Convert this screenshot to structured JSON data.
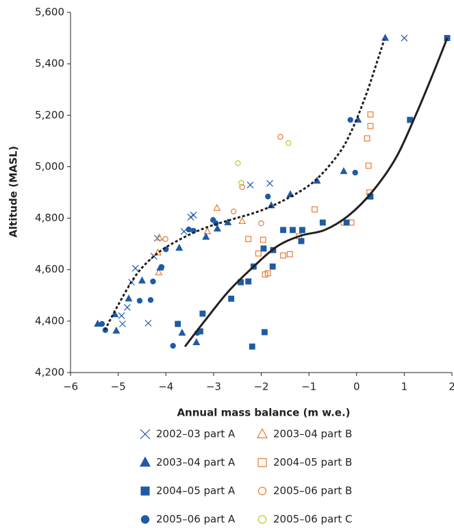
{
  "chart_data": {
    "type": "scatter",
    "x_label": "Annual mass balance (m w.e.)",
    "y_label": "Altitude (MASL)",
    "xlim": [
      -6,
      2
    ],
    "xticks": [
      {
        "value": -6,
        "label": "−6"
      },
      {
        "value": -5,
        "label": "−5"
      },
      {
        "value": -4,
        "label": "−4"
      },
      {
        "value": -3,
        "label": "−3"
      },
      {
        "value": -2,
        "label": "−2"
      },
      {
        "value": -1,
        "label": "−1"
      },
      0,
      1,
      2
    ],
    "ylim": [
      4200,
      5600
    ],
    "yticks": [
      {
        "value": 4200,
        "label": "4,200"
      },
      {
        "value": 4400,
        "label": "4,400"
      },
      {
        "value": 4600,
        "label": "4,600"
      },
      {
        "value": 4800,
        "label": "4,800"
      },
      {
        "value": 5000,
        "label": "5,000"
      },
      {
        "value": 5200,
        "label": "5,200"
      },
      {
        "value": 5400,
        "label": "5,400"
      },
      {
        "value": 5600,
        "label": "5,600"
      }
    ],
    "series": [
      {
        "name": "2002–03 part A",
        "color": "#1f5aa6",
        "marker": "x",
        "filled": false,
        "x": [
          1.0,
          -2.23,
          -1.82,
          -3.42,
          -3.48,
          -3.62,
          -4.18,
          -4.25,
          -4.64,
          -4.72,
          -4.81,
          -4.93,
          -4.91,
          -4.37
        ],
        "values": [
          5500,
          4929,
          4935,
          4812,
          4804,
          4748,
          4722,
          4652,
          4605,
          4551,
          4453,
          4421,
          4389,
          4392
        ]
      },
      {
        "name": "2003–04 part B",
        "color": "#e8792f",
        "marker": "triangle",
        "filled": false,
        "x": [
          -2.93,
          -3.13,
          -2.4,
          -4.14,
          -4.17,
          -4.15
        ],
        "values": [
          4839,
          4748,
          4788,
          4724,
          4666,
          4589
        ]
      },
      {
        "name": "2003–04 part A",
        "color": "#1f5aa6",
        "marker": "triangle",
        "filled": true,
        "x": [
          0.6,
          0.03,
          -0.27,
          -0.83,
          -1.39,
          -1.79,
          -2.7,
          -2.92,
          -3.16,
          -3.72,
          -4.12,
          -4.5,
          -4.78,
          -5.07,
          -5.43,
          -5.04,
          -3.36,
          -3.66
        ],
        "values": [
          5500,
          5182,
          4982,
          4945,
          4892,
          4849,
          4783,
          4759,
          4727,
          4684,
          4607,
          4557,
          4487,
          4426,
          4389,
          4362,
          4317,
          4354
        ]
      },
      {
        "name": "2004–05 part B",
        "color": "#e8792f",
        "marker": "square",
        "filled": false,
        "x": [
          0.29,
          0.29,
          0.22,
          0.25,
          0.27,
          -0.11,
          -0.27,
          -0.88,
          -1.21,
          -1.4,
          -1.54,
          -1.92,
          -1.86,
          -1.96,
          -2.27,
          -2.06
        ],
        "values": [
          5203,
          5158,
          5110,
          5004,
          4900,
          4783,
          4783,
          4834,
          4730,
          4660,
          4655,
          4581,
          4586,
          4716,
          4719,
          4663
        ]
      },
      {
        "name": "2004–05 part A",
        "color": "#1f5aa6",
        "marker": "square",
        "filled": true,
        "x": [
          1.9,
          1.12,
          0.29,
          -0.21,
          -0.71,
          -1.16,
          -1.34,
          -1.14,
          -1.54,
          -1.75,
          -1.95,
          -1.76,
          -2.16,
          -2.27,
          -2.43,
          -2.63,
          -3.23,
          -3.28,
          -3.75,
          -2.19,
          -1.93
        ],
        "values": [
          5500,
          5182,
          4884,
          4783,
          4783,
          4711,
          4754,
          4754,
          4754,
          4676,
          4682,
          4612,
          4612,
          4554,
          4551,
          4487,
          4429,
          4360,
          4389,
          4301,
          4357
        ]
      },
      {
        "name": "2005–06 part B",
        "color": "#e8792f",
        "marker": "circle",
        "filled": false,
        "x": [
          -1.6,
          -2.4,
          -2.58,
          -2.0,
          -4.01
        ],
        "values": [
          5116,
          4921,
          4826,
          4780,
          4719
        ]
      },
      {
        "name": "2005–06 part A",
        "color": "#1f5aa6",
        "marker": "circle",
        "filled": true,
        "x": [
          -0.13,
          -0.03,
          -1.86,
          -3.01,
          -2.95,
          -3.52,
          -3.42,
          -4.0,
          -4.09,
          -4.27,
          -4.55,
          -4.32,
          -5.34,
          -5.27,
          -3.85,
          -3.34
        ],
        "values": [
          5182,
          4977,
          4884,
          4793,
          4780,
          4756,
          4751,
          4679,
          4610,
          4554,
          4479,
          4482,
          4389,
          4365,
          4304,
          4354
        ]
      },
      {
        "name": "2005–06 part C",
        "color": "#b5c92b",
        "marker": "circle",
        "filled": false,
        "x": [
          -1.43,
          -2.49,
          -2.42
        ],
        "values": [
          5092,
          5014,
          4937
        ]
      }
    ],
    "curves": [
      {
        "line": "dotted",
        "color": "#231f20",
        "x": [
          -5.28,
          -5.0,
          -4.61,
          -4.18,
          -3.72,
          -3.18,
          -2.6,
          -2.03,
          -1.46,
          -0.89,
          -0.38,
          -0.1,
          0.19,
          0.43,
          0.58
        ],
        "values": [
          4365,
          4463,
          4583,
          4663,
          4716,
          4762,
          4796,
          4828,
          4876,
          4943,
          5049,
          5142,
          5275,
          5408,
          5494
        ]
      },
      {
        "line": "solid",
        "color": "#231f20",
        "x": [
          -3.6,
          -3.18,
          -2.68,
          -2.17,
          -1.67,
          -1.17,
          -0.67,
          -0.17,
          0.33,
          0.83,
          1.26,
          1.62,
          1.9
        ],
        "values": [
          4301,
          4402,
          4517,
          4610,
          4690,
          4732,
          4754,
          4810,
          4903,
          5036,
          5209,
          5369,
          5500
        ]
      }
    ]
  }
}
